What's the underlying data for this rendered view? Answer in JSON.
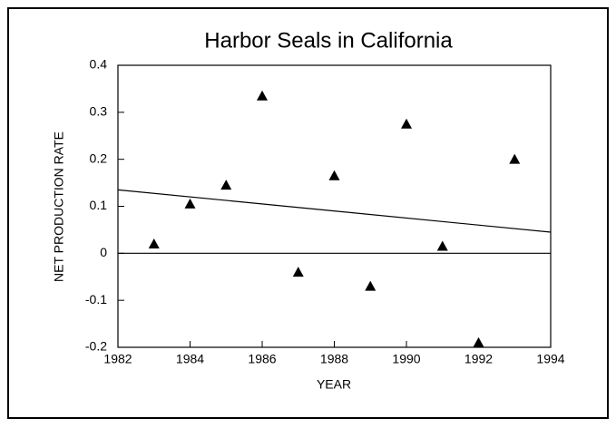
{
  "chart_data": {
    "type": "scatter",
    "title": "Harbor Seals in California",
    "x_label": "YEAR",
    "y_label": "NET PRODUCTION RATE",
    "series": [
      {
        "color": "#000000",
        "x": [
          1983,
          1984,
          1985,
          1986,
          1987,
          1988,
          1989,
          1990,
          1991,
          1992,
          1993
        ],
        "values": [
          0.02,
          0.105,
          0.145,
          0.335,
          -0.04,
          0.165,
          -0.07,
          0.275,
          0.015,
          -0.19,
          0.2
        ]
      }
    ],
    "trend_line": {
      "x": [
        1982,
        1994
      ],
      "values": [
        0.135,
        0.045
      ],
      "color": "#000000"
    },
    "xlim": [
      1982,
      1994
    ],
    "xticks": [
      1982,
      1984,
      1986,
      1988,
      1990,
      1992,
      1994
    ],
    "ylim": [
      -0.2,
      0.4
    ],
    "yticks": [
      0.4,
      0.3,
      0.2,
      0.1,
      0,
      -0.1,
      -0.2
    ],
    "zero_line": true
  }
}
